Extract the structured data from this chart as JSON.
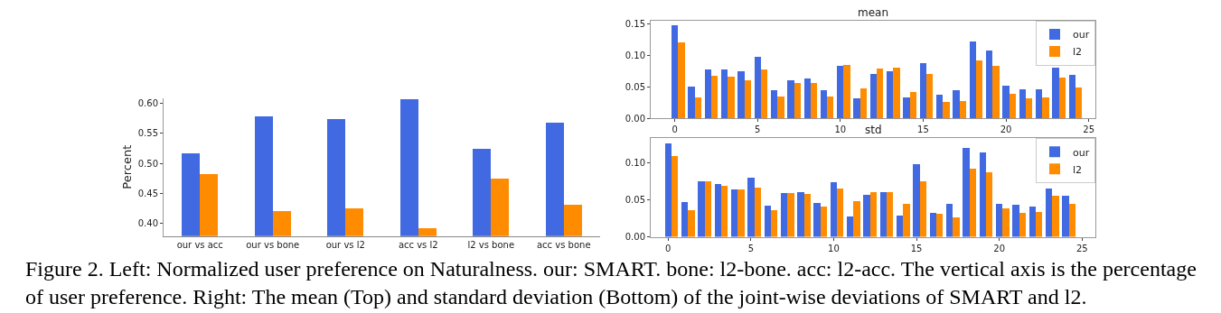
{
  "chart_data": [
    {
      "type": "bar",
      "ylabel": "Percent",
      "categories": [
        "our vs acc",
        "our vs bone",
        "our vs l2",
        "acc vs l2",
        "l2 vs bone",
        "acc vs bone"
      ],
      "series": [
        {
          "color": "#4169e1",
          "values": [
            0.517,
            0.579,
            0.574,
            0.608,
            0.525,
            0.569
          ]
        },
        {
          "color": "#ff8c00",
          "values": [
            0.482,
            0.421,
            0.425,
            0.392,
            0.475,
            0.431
          ]
        }
      ],
      "ylim": [
        0.379,
        0.609
      ],
      "yticks": [
        {
          "value": 0.4,
          "label": "0.40"
        },
        {
          "value": 0.45,
          "label": "0.45"
        },
        {
          "value": 0.5,
          "label": "0.50"
        },
        {
          "value": 0.55,
          "label": "0.55"
        },
        {
          "value": 0.6,
          "label": "0.60"
        }
      ],
      "annotations": [
        "Figure 2. Left: Normalized user preference on Naturalness. our: SMART. bone: l2-bone. acc: l2-acc. The vertical axis is the percentage of user preference. Right: The mean (Top) and standard deviation (Bottom) of the joint-wise deviations of SMART and l2."
      ]
    },
    {
      "type": "bar",
      "title": "mean",
      "x": [
        0,
        1,
        2,
        3,
        4,
        5,
        6,
        7,
        8,
        9,
        10,
        11,
        12,
        13,
        14,
        15,
        16,
        17,
        18,
        19,
        20,
        21,
        22,
        23,
        24
      ],
      "series": [
        {
          "name": "our",
          "color": "#4169e1",
          "values": [
            0.149,
            0.051,
            0.078,
            0.079,
            0.075,
            0.098,
            0.046,
            0.062,
            0.064,
            0.046,
            0.084,
            0.033,
            0.072,
            0.076,
            0.034,
            0.089,
            0.038,
            0.045,
            0.123,
            0.109,
            0.053,
            0.047,
            0.047,
            0.082,
            0.07
          ]
        },
        {
          "name": "l2",
          "color": "#ff8c00",
          "values": [
            0.122,
            0.034,
            0.068,
            0.067,
            0.061,
            0.078,
            0.036,
            0.057,
            0.057,
            0.035,
            0.086,
            0.049,
            0.08,
            0.082,
            0.043,
            0.071,
            0.027,
            0.028,
            0.093,
            0.085,
            0.04,
            0.033,
            0.034,
            0.065,
            0.05
          ]
        }
      ],
      "xlim": [
        -1.45,
        25.4
      ],
      "xticks": [
        0,
        5,
        10,
        15,
        20,
        25
      ],
      "ylim": [
        0,
        0.156
      ],
      "yticks": [
        {
          "value": 0,
          "label": "0.00"
        },
        {
          "value": 0.05,
          "label": "0.05"
        },
        {
          "value": 0.1,
          "label": "0.10"
        },
        {
          "value": 0.15,
          "label": "0.15"
        }
      ],
      "legend": "top right"
    },
    {
      "type": "bar",
      "title": "std",
      "x": [
        0,
        1,
        2,
        3,
        4,
        5,
        6,
        7,
        8,
        9,
        10,
        11,
        12,
        13,
        14,
        15,
        16,
        17,
        18,
        19,
        20,
        21,
        22,
        23,
        24
      ],
      "series": [
        {
          "name": "our",
          "color": "#4169e1",
          "values": [
            0.127,
            0.047,
            0.075,
            0.072,
            0.065,
            0.08,
            0.043,
            0.059,
            0.061,
            0.046,
            0.074,
            0.028,
            0.057,
            0.061,
            0.029,
            0.099,
            0.033,
            0.045,
            0.12,
            0.115,
            0.045,
            0.044,
            0.041,
            0.066,
            0.056
          ]
        },
        {
          "name": "l2",
          "color": "#ff8c00",
          "values": [
            0.11,
            0.036,
            0.075,
            0.069,
            0.065,
            0.067,
            0.036,
            0.059,
            0.058,
            0.041,
            0.066,
            0.048,
            0.061,
            0.061,
            0.045,
            0.075,
            0.031,
            0.026,
            0.092,
            0.087,
            0.039,
            0.033,
            0.034,
            0.056,
            0.045
          ]
        }
      ],
      "xlim": [
        -1.05,
        25.8
      ],
      "xticks": [
        0,
        5,
        10,
        15,
        20,
        25
      ],
      "ylim": [
        0,
        0.134
      ],
      "yticks": [
        {
          "value": 0,
          "label": "0.00"
        },
        {
          "value": 0.05,
          "label": "0.05"
        },
        {
          "value": 0.1,
          "label": "0.10"
        }
      ],
      "legend": "top right"
    }
  ]
}
